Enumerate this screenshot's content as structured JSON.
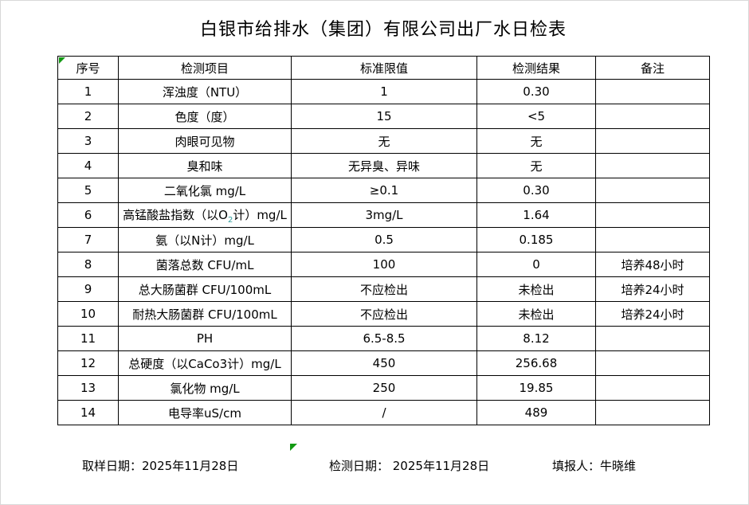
{
  "title": "白银市给排水（集团）有限公司出厂水日检表",
  "table": {
    "headers": [
      "序号",
      "检测项目",
      "标准限值",
      "检测结果",
      "备注"
    ],
    "rows": [
      {
        "no": "1",
        "item": "浑浊度（NTU）",
        "standard": "1",
        "result": "0.30",
        "remark": ""
      },
      {
        "no": "2",
        "item": "色度（度）",
        "standard": "15",
        "result": "<5",
        "remark": ""
      },
      {
        "no": "3",
        "item": "肉眼可见物",
        "standard": "无",
        "result": "无",
        "remark": ""
      },
      {
        "no": "4",
        "item": "臭和味",
        "standard": "无异臭、异味",
        "result": "无",
        "remark": ""
      },
      {
        "no": "5",
        "item": "二氧化氯 mg/L",
        "standard": "≥0.1",
        "result": "0.30",
        "remark": ""
      },
      {
        "no": "6",
        "item": "高锰酸盐指数（以O2计）mg/L",
        "item_parts": [
          {
            "t": "高锰酸盐指数（以O"
          },
          {
            "t": "2",
            "sub": true
          },
          {
            "t": "计）mg/L"
          }
        ],
        "standard": "3mg/L",
        "result": "1.64",
        "remark": ""
      },
      {
        "no": "7",
        "item": "氨（以N计）mg/L",
        "standard": "0.5",
        "result": "0.185",
        "remark": ""
      },
      {
        "no": "8",
        "item": "菌落总数 CFU/mL",
        "standard": "100",
        "result": "0",
        "remark": "培养48小时"
      },
      {
        "no": "9",
        "item": "总大肠菌群 CFU/100mL",
        "standard": "不应检出",
        "result": "未检出",
        "remark": "培养24小时"
      },
      {
        "no": "10",
        "item": "耐热大肠菌群 CFU/100mL",
        "standard": "不应检出",
        "result": "未检出",
        "remark": "培养24小时"
      },
      {
        "no": "11",
        "item": "PH",
        "standard": "6.5-8.5",
        "result": "8.12",
        "remark": ""
      },
      {
        "no": "12",
        "item": "总硬度（以CaCo3计）mg/L",
        "standard": "450",
        "result": "256.68",
        "remark": ""
      },
      {
        "no": "13",
        "item": "氯化物 mg/L",
        "standard": "250",
        "result": "19.85",
        "remark": ""
      },
      {
        "no": "14",
        "item": "电导率uS/cm",
        "standard": "/",
        "result": "489",
        "remark": ""
      }
    ]
  },
  "footer": {
    "sampling_date": "取样日期：2025年11月28日",
    "test_date": "检测日期： 2025年11月28日",
    "filler": "填报人：牛晓维"
  },
  "icons": {
    "error_indicator": "green-corner-triangle",
    "fill_marker": "green-corner-triangle"
  },
  "colors": {
    "indicator_green": "#129a12",
    "subscript_teal": "#2f9d9d",
    "border": "#000000",
    "background": "#ffffff",
    "frame": "#d8d8d8"
  }
}
